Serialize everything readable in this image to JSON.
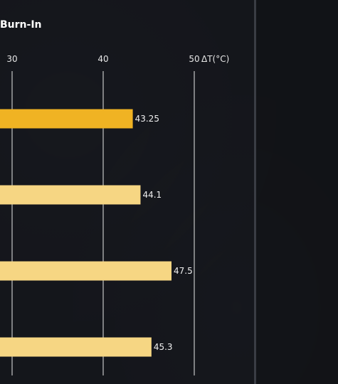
{
  "chart_data": {
    "type": "bar",
    "orientation": "horizontal",
    "title": "Burn-In",
    "unit_label": "ΔT(°C)",
    "xticks": [
      30,
      40,
      50
    ],
    "xlim": [
      28.6,
      50
    ],
    "grid": true,
    "series": [
      {
        "values": [
          43.25,
          44.1,
          47.5,
          45.3
        ],
        "value_labels": [
          "43.25",
          "44.1",
          "47.5",
          "45.3"
        ],
        "colors": [
          "#f0b323",
          "#f6d683",
          "#f6d683",
          "#f6d683"
        ]
      }
    ]
  }
}
